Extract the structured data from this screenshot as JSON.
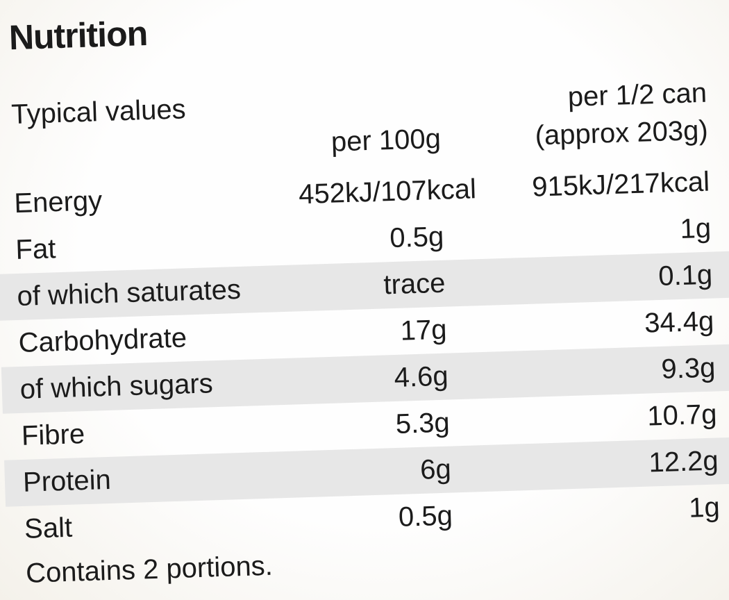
{
  "nutrition_label": {
    "title": "Nutrition",
    "header": {
      "row_label": "Typical values",
      "col_per_100g": "per 100g",
      "col_per_half_can_line1": "per 1/2 can",
      "col_per_half_can_line2": "(approx 203g)"
    },
    "rows": [
      {
        "name": "Energy",
        "per_100g": "452kJ/107kcal",
        "per_half_can": "915kJ/217kcal"
      },
      {
        "name": "Fat",
        "per_100g": "0.5g",
        "per_half_can": "1g"
      },
      {
        "name": "of which saturates",
        "per_100g": "trace",
        "per_half_can": "0.1g"
      },
      {
        "name": "Carbohydrate",
        "per_100g": "17g",
        "per_half_can": "34.4g"
      },
      {
        "name": "of which sugars",
        "per_100g": "4.6g",
        "per_half_can": "9.3g"
      },
      {
        "name": "Fibre",
        "per_100g": "5.3g",
        "per_half_can": "10.7g"
      },
      {
        "name": "Protein",
        "per_100g": "6g",
        "per_half_can": "12.2g"
      },
      {
        "name": "Salt",
        "per_100g": "0.5g",
        "per_half_can": "1g"
      }
    ],
    "footer": "Contains 2 portions.",
    "colors": {
      "text": "#1b1b1b",
      "row_shade": "#e7e7e7",
      "background": "#f7f4ee"
    }
  }
}
